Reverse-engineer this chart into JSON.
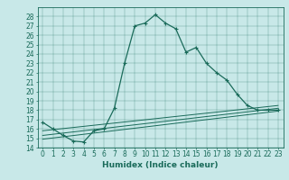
{
  "title": "",
  "xlabel": "Humidex (Indice chaleur)",
  "bg_color": "#c8e8e8",
  "line_color": "#1a6b5a",
  "xlim": [
    -0.5,
    23.5
  ],
  "ylim": [
    14,
    29
  ],
  "yticks": [
    14,
    15,
    16,
    17,
    18,
    19,
    20,
    21,
    22,
    23,
    24,
    25,
    26,
    27,
    28
  ],
  "xticks": [
    0,
    1,
    2,
    3,
    4,
    5,
    6,
    7,
    8,
    9,
    10,
    11,
    12,
    13,
    14,
    15,
    16,
    17,
    18,
    19,
    20,
    21,
    22,
    23
  ],
  "series1_x": [
    0,
    1,
    2,
    3,
    4,
    5,
    6,
    7,
    8,
    9,
    10,
    11,
    12,
    13,
    14,
    15,
    16,
    17,
    18,
    19,
    20,
    21,
    22,
    23
  ],
  "series1_y": [
    16.7,
    16.0,
    15.3,
    14.7,
    14.6,
    15.8,
    16.0,
    18.2,
    23.0,
    27.0,
    27.3,
    28.2,
    27.3,
    26.7,
    24.2,
    24.7,
    23.0,
    22.0,
    21.2,
    19.7,
    18.5,
    18.0,
    18.0,
    18.0
  ],
  "series2_x": [
    0,
    23
  ],
  "series2_y": [
    15.8,
    18.5
  ],
  "series3_x": [
    0,
    23
  ],
  "series3_y": [
    15.3,
    18.2
  ],
  "series4_x": [
    0,
    23
  ],
  "series4_y": [
    14.9,
    17.9
  ],
  "tick_fontsize": 5.5,
  "xlabel_fontsize": 6.5
}
